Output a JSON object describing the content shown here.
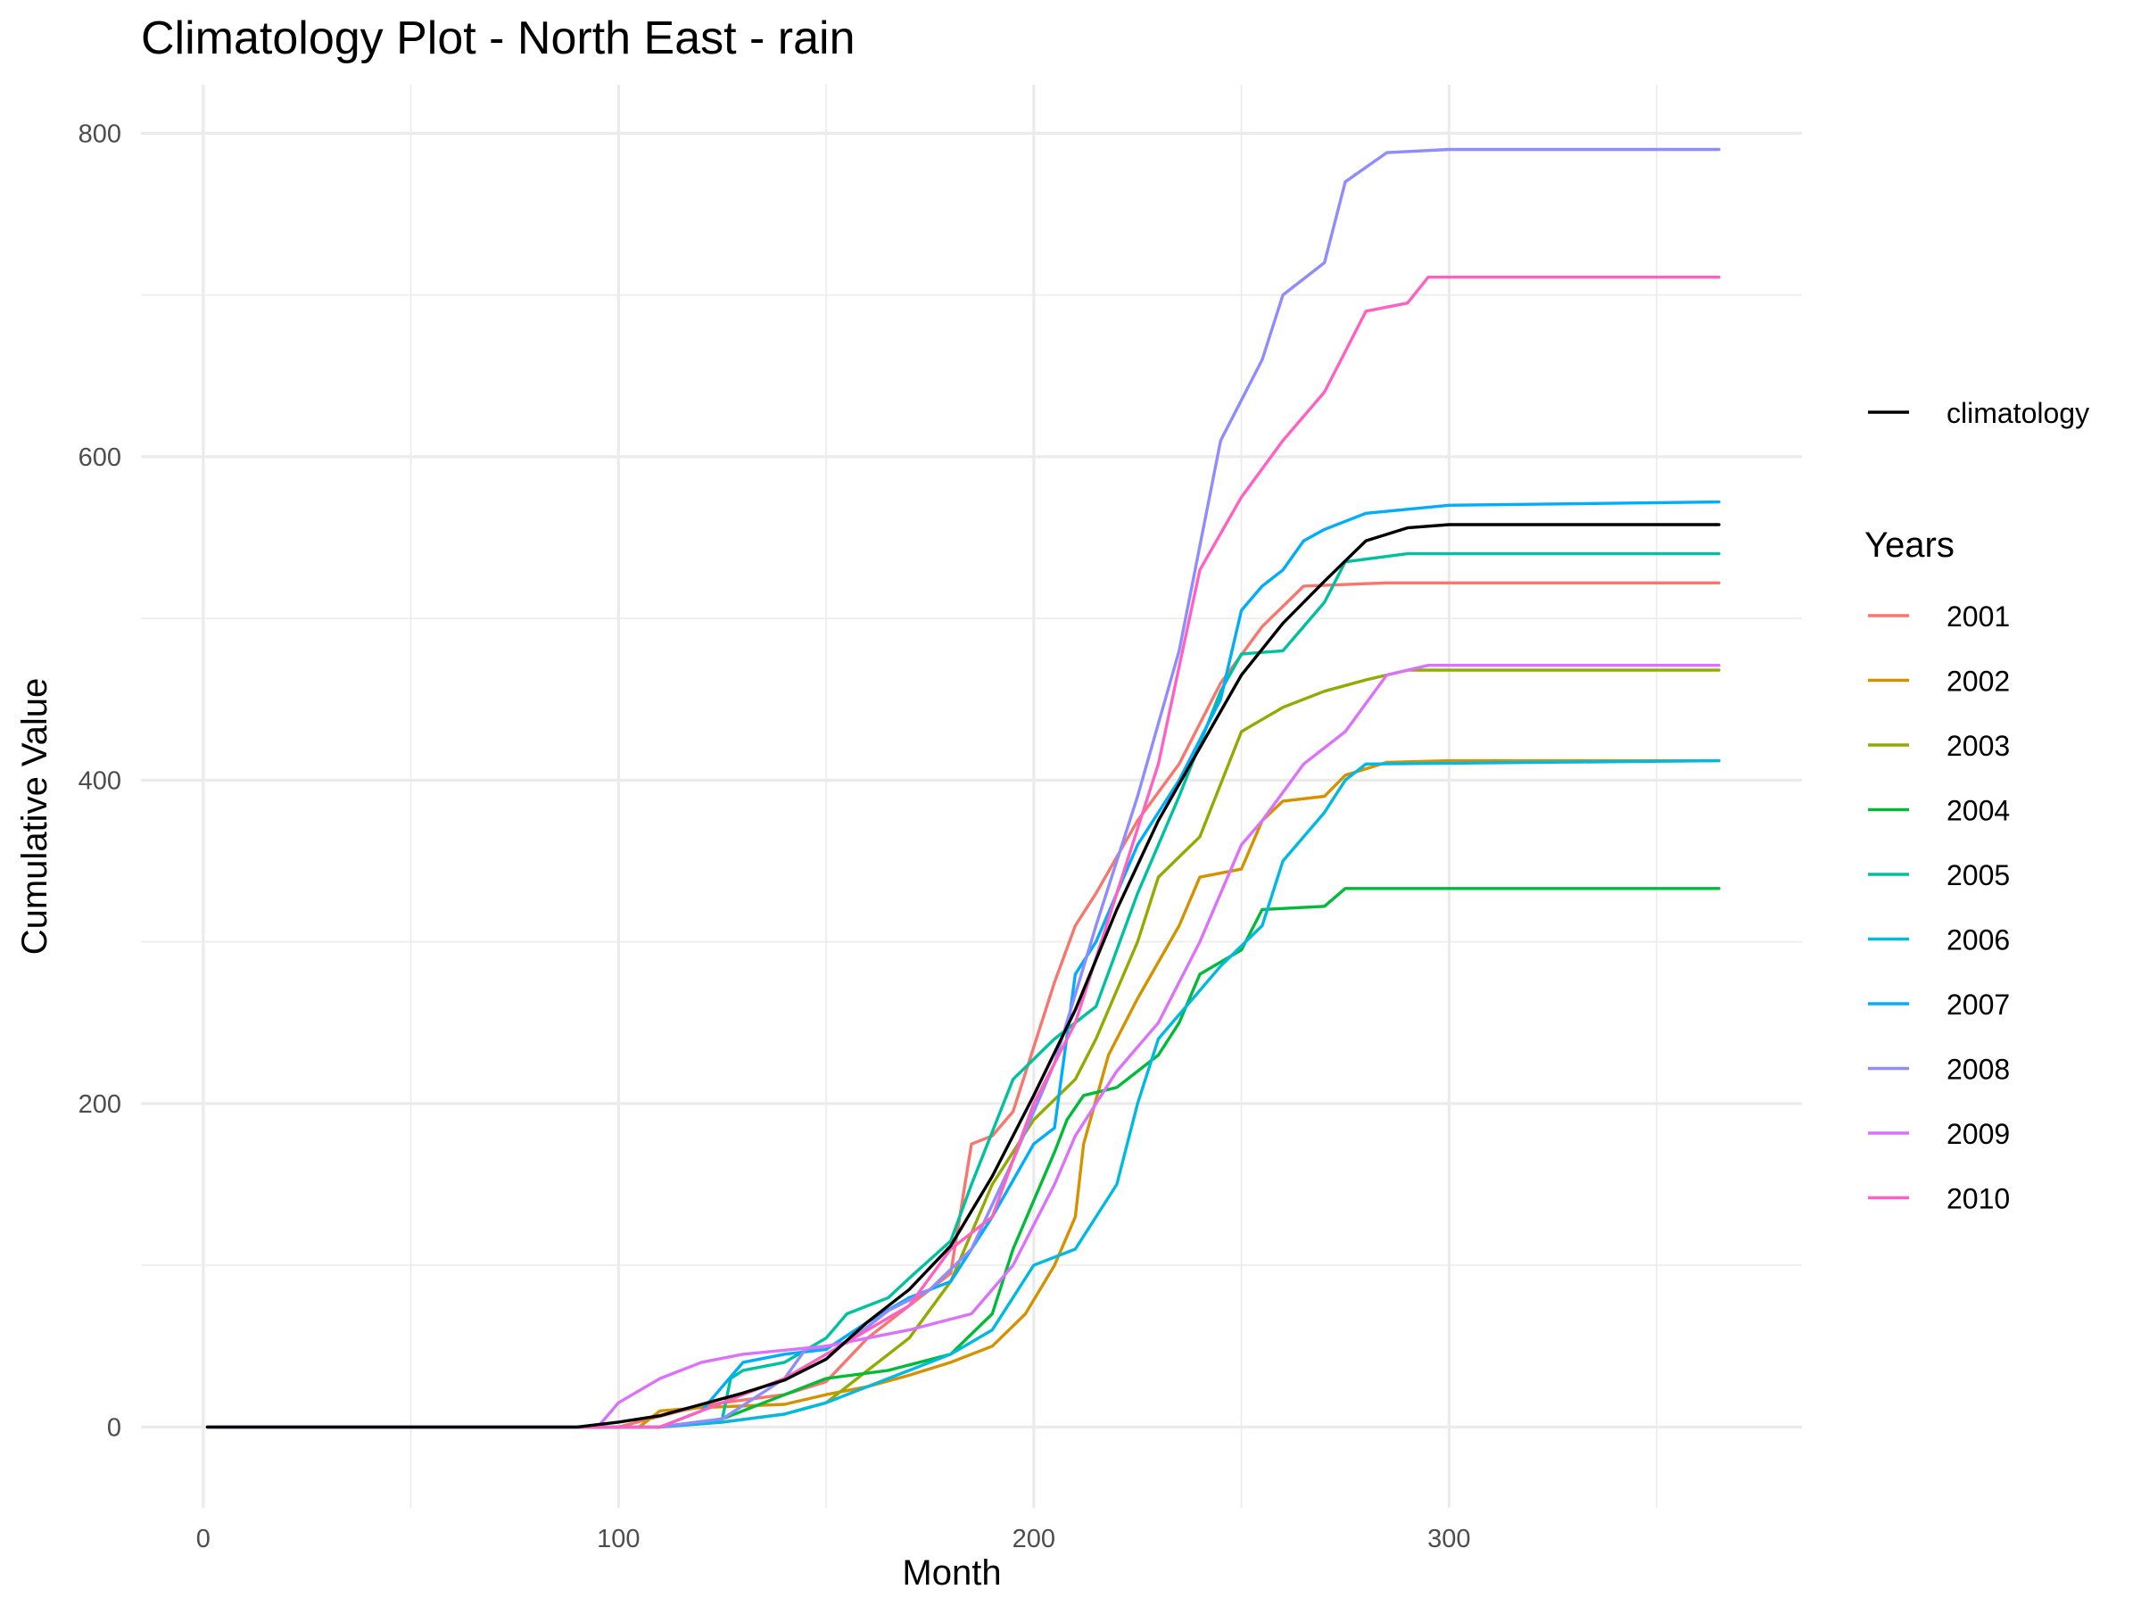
{
  "chart_data": {
    "type": "line",
    "title": "Climatology Plot - North East - rain",
    "xlabel": "Month",
    "ylabel": "Cumulative Value",
    "xlim": [
      -15,
      385
    ],
    "ylim": [
      -50,
      830
    ],
    "x_major_ticks": [
      0,
      100,
      200,
      300
    ],
    "x_minor_ticks": [
      50,
      150,
      250,
      350
    ],
    "y_major_ticks": [
      0,
      200,
      400,
      600,
      800
    ],
    "y_minor_ticks": [
      100,
      300,
      500,
      700
    ],
    "grid": true,
    "legend": {
      "placement": "right",
      "climatology_label": "climatology",
      "years_title": "Years"
    },
    "climatology": {
      "name": "climatology",
      "color": "#000000",
      "points": [
        [
          1,
          0
        ],
        [
          90,
          0
        ],
        [
          100,
          3
        ],
        [
          110,
          7
        ],
        [
          120,
          14
        ],
        [
          130,
          21
        ],
        [
          140,
          29
        ],
        [
          150,
          42
        ],
        [
          160,
          65
        ],
        [
          170,
          85
        ],
        [
          180,
          112
        ],
        [
          190,
          155
        ],
        [
          200,
          205
        ],
        [
          210,
          258
        ],
        [
          220,
          320
        ],
        [
          230,
          375
        ],
        [
          240,
          420
        ],
        [
          250,
          465
        ],
        [
          260,
          497
        ],
        [
          270,
          523
        ],
        [
          280,
          548
        ],
        [
          290,
          556
        ],
        [
          300,
          558
        ],
        [
          365,
          558
        ]
      ]
    },
    "series": [
      {
        "name": "2001",
        "color": "#F8766D",
        "points": [
          [
            1,
            0
          ],
          [
            100,
            0
          ],
          [
            115,
            10
          ],
          [
            125,
            15
          ],
          [
            140,
            20
          ],
          [
            150,
            28
          ],
          [
            160,
            55
          ],
          [
            170,
            75
          ],
          [
            180,
            95
          ],
          [
            185,
            175
          ],
          [
            190,
            180
          ],
          [
            195,
            195
          ],
          [
            205,
            275
          ],
          [
            210,
            310
          ],
          [
            215,
            330
          ],
          [
            225,
            375
          ],
          [
            235,
            410
          ],
          [
            245,
            460
          ],
          [
            255,
            495
          ],
          [
            265,
            520
          ],
          [
            285,
            522
          ],
          [
            365,
            522
          ]
        ]
      },
      {
        "name": "2002",
        "color": "#D39200",
        "points": [
          [
            1,
            0
          ],
          [
            105,
            0
          ],
          [
            110,
            10
          ],
          [
            120,
            12
          ],
          [
            140,
            14
          ],
          [
            150,
            20
          ],
          [
            160,
            25
          ],
          [
            170,
            32
          ],
          [
            180,
            40
          ],
          [
            190,
            50
          ],
          [
            198,
            70
          ],
          [
            205,
            100
          ],
          [
            210,
            130
          ],
          [
            212,
            175
          ],
          [
            218,
            230
          ],
          [
            225,
            265
          ],
          [
            235,
            310
          ],
          [
            240,
            340
          ],
          [
            250,
            345
          ],
          [
            255,
            375
          ],
          [
            260,
            387
          ],
          [
            270,
            390
          ],
          [
            275,
            403
          ],
          [
            285,
            411
          ],
          [
            300,
            412
          ],
          [
            365,
            412
          ]
        ]
      },
      {
        "name": "2003",
        "color": "#93AA00",
        "points": [
          [
            1,
            0
          ],
          [
            110,
            0
          ],
          [
            125,
            3
          ],
          [
            140,
            8
          ],
          [
            150,
            15
          ],
          [
            160,
            35
          ],
          [
            170,
            55
          ],
          [
            180,
            90
          ],
          [
            190,
            150
          ],
          [
            200,
            190
          ],
          [
            210,
            215
          ],
          [
            215,
            240
          ],
          [
            225,
            300
          ],
          [
            230,
            340
          ],
          [
            240,
            365
          ],
          [
            250,
            430
          ],
          [
            260,
            445
          ],
          [
            270,
            455
          ],
          [
            280,
            462
          ],
          [
            290,
            468
          ],
          [
            365,
            468
          ]
        ]
      },
      {
        "name": "2004",
        "color": "#00BA38",
        "points": [
          [
            1,
            0
          ],
          [
            110,
            0
          ],
          [
            125,
            5
          ],
          [
            135,
            15
          ],
          [
            150,
            30
          ],
          [
            165,
            35
          ],
          [
            180,
            45
          ],
          [
            190,
            70
          ],
          [
            195,
            110
          ],
          [
            200,
            140
          ],
          [
            205,
            170
          ],
          [
            208,
            190
          ],
          [
            212,
            205
          ],
          [
            220,
            210
          ],
          [
            230,
            230
          ],
          [
            235,
            250
          ],
          [
            240,
            280
          ],
          [
            250,
            295
          ],
          [
            255,
            320
          ],
          [
            270,
            322
          ],
          [
            275,
            333
          ],
          [
            365,
            333
          ]
        ]
      },
      {
        "name": "2005",
        "color": "#00C19F",
        "points": [
          [
            1,
            0
          ],
          [
            110,
            0
          ],
          [
            125,
            5
          ],
          [
            127,
            30
          ],
          [
            130,
            35
          ],
          [
            140,
            40
          ],
          [
            150,
            55
          ],
          [
            155,
            70
          ],
          [
            165,
            80
          ],
          [
            170,
            92
          ],
          [
            180,
            115
          ],
          [
            185,
            150
          ],
          [
            195,
            215
          ],
          [
            205,
            240
          ],
          [
            215,
            260
          ],
          [
            225,
            330
          ],
          [
            235,
            390
          ],
          [
            245,
            455
          ],
          [
            250,
            478
          ],
          [
            260,
            480
          ],
          [
            270,
            510
          ],
          [
            275,
            535
          ],
          [
            290,
            540
          ],
          [
            365,
            540
          ]
        ]
      },
      {
        "name": "2006",
        "color": "#00B9E3",
        "points": [
          [
            1,
            0
          ],
          [
            110,
            0
          ],
          [
            125,
            3
          ],
          [
            140,
            8
          ],
          [
            150,
            15
          ],
          [
            160,
            25
          ],
          [
            170,
            35
          ],
          [
            180,
            45
          ],
          [
            190,
            60
          ],
          [
            200,
            100
          ],
          [
            210,
            110
          ],
          [
            220,
            150
          ],
          [
            225,
            200
          ],
          [
            230,
            240
          ],
          [
            245,
            285
          ],
          [
            255,
            310
          ],
          [
            260,
            350
          ],
          [
            270,
            380
          ],
          [
            275,
            400
          ],
          [
            280,
            410
          ],
          [
            365,
            412
          ]
        ]
      },
      {
        "name": "2007",
        "color": "#00ADFA",
        "points": [
          [
            1,
            0
          ],
          [
            110,
            0
          ],
          [
            120,
            10
          ],
          [
            130,
            40
          ],
          [
            140,
            45
          ],
          [
            150,
            48
          ],
          [
            160,
            65
          ],
          [
            170,
            80
          ],
          [
            180,
            90
          ],
          [
            190,
            130
          ],
          [
            200,
            175
          ],
          [
            205,
            185
          ],
          [
            210,
            280
          ],
          [
            215,
            300
          ],
          [
            225,
            360
          ],
          [
            235,
            400
          ],
          [
            245,
            450
          ],
          [
            250,
            505
          ],
          [
            255,
            520
          ],
          [
            260,
            530
          ],
          [
            265,
            548
          ],
          [
            270,
            555
          ],
          [
            280,
            565
          ],
          [
            300,
            570
          ],
          [
            365,
            572
          ]
        ]
      },
      {
        "name": "2008",
        "color": "#8E8CFF",
        "points": [
          [
            1,
            0
          ],
          [
            110,
            0
          ],
          [
            125,
            5
          ],
          [
            140,
            30
          ],
          [
            145,
            48
          ],
          [
            155,
            52
          ],
          [
            165,
            72
          ],
          [
            175,
            85
          ],
          [
            185,
            110
          ],
          [
            195,
            165
          ],
          [
            205,
            225
          ],
          [
            215,
            310
          ],
          [
            225,
            390
          ],
          [
            235,
            480
          ],
          [
            245,
            610
          ],
          [
            255,
            660
          ],
          [
            260,
            700
          ],
          [
            270,
            720
          ],
          [
            275,
            770
          ],
          [
            285,
            788
          ],
          [
            300,
            790
          ],
          [
            365,
            790
          ]
        ]
      },
      {
        "name": "2009",
        "color": "#DB72FB",
        "points": [
          [
            1,
            0
          ],
          [
            95,
            0
          ],
          [
            100,
            15
          ],
          [
            110,
            30
          ],
          [
            120,
            40
          ],
          [
            130,
            45
          ],
          [
            150,
            50
          ],
          [
            160,
            55
          ],
          [
            170,
            60
          ],
          [
            185,
            70
          ],
          [
            195,
            100
          ],
          [
            205,
            150
          ],
          [
            210,
            180
          ],
          [
            220,
            220
          ],
          [
            230,
            250
          ],
          [
            240,
            300
          ],
          [
            250,
            360
          ],
          [
            255,
            375
          ],
          [
            265,
            410
          ],
          [
            275,
            430
          ],
          [
            285,
            465
          ],
          [
            295,
            471
          ],
          [
            365,
            471
          ]
        ]
      },
      {
        "name": "2010",
        "color": "#FF61C3",
        "points": [
          [
            1,
            0
          ],
          [
            110,
            0
          ],
          [
            120,
            10
          ],
          [
            130,
            20
          ],
          [
            140,
            30
          ],
          [
            150,
            45
          ],
          [
            160,
            60
          ],
          [
            170,
            75
          ],
          [
            180,
            110
          ],
          [
            190,
            130
          ],
          [
            200,
            200
          ],
          [
            210,
            250
          ],
          [
            220,
            330
          ],
          [
            230,
            410
          ],
          [
            240,
            530
          ],
          [
            250,
            575
          ],
          [
            260,
            610
          ],
          [
            270,
            640
          ],
          [
            280,
            690
          ],
          [
            290,
            695
          ],
          [
            295,
            711
          ],
          [
            365,
            711
          ]
        ]
      }
    ]
  }
}
